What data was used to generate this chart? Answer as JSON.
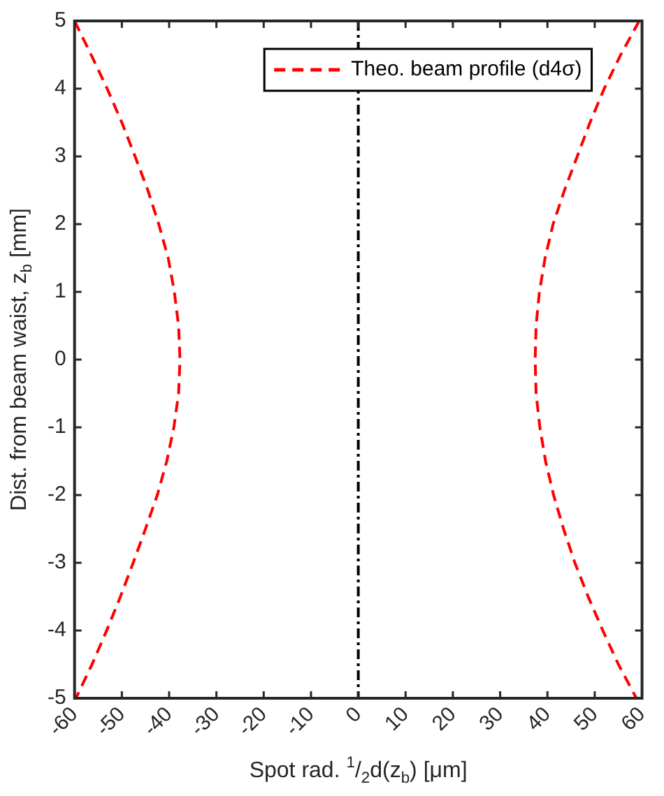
{
  "chart_data": {
    "type": "line",
    "xlabel": "Spot rad. $^{1}$/$_{2}$d(z$_{b}$) [μm]",
    "ylabel": "Dist. from beam waist, z$_{b}$ [mm]",
    "series": [
      {
        "name": "Theo. beam profile (d4σ)",
        "color": "#ff0000",
        "x": [
          -60,
          -56.5,
          -53.1,
          -50,
          -47.2,
          -44.5,
          -42.2,
          -40.2,
          -38.9,
          -38,
          -37.7,
          -38,
          -39,
          -40.5,
          -42.5,
          -45,
          -47.6,
          -50.3,
          -53.2,
          -56.3,
          -59.7
        ],
        "values": [
          5,
          4.5,
          4,
          3.5,
          3,
          2.5,
          2,
          1.5,
          1,
          0.5,
          0,
          -0.5,
          -1,
          -1.5,
          -2,
          -2.5,
          -3,
          -3.5,
          -4,
          -4.5,
          -5
        ]
      },
      {
        "color": "#ff0000",
        "x": [
          59.4,
          55.5,
          52,
          49,
          46.3,
          43.6,
          41.2,
          39.5,
          38.3,
          37.6,
          37.4,
          37.6,
          38.4,
          39.6,
          41.3,
          43.4,
          45.8,
          48.6,
          51.7,
          55,
          58.8
        ],
        "values": [
          5,
          4.5,
          4,
          3.5,
          3,
          2.5,
          2,
          1.5,
          1,
          0.5,
          0,
          -0.5,
          -1,
          -1.5,
          -2,
          -2.5,
          -3,
          -3.5,
          -4,
          -4.5,
          -5
        ]
      }
    ],
    "xlim": [
      -60,
      60
    ],
    "xticks": [
      -60,
      -50,
      -40,
      -30,
      -20,
      -10,
      0,
      10,
      20,
      30,
      40,
      50,
      60
    ],
    "ylim": [
      -5,
      5
    ],
    "yticks": [
      -5,
      -4,
      -3,
      -2,
      -1,
      0,
      1,
      2,
      3,
      4,
      5
    ],
    "ref_lines": [
      {
        "axis": "x",
        "value": 0,
        "color": "#000000",
        "line_style": "dashdot"
      }
    ],
    "grid": false,
    "legend": "top right",
    "line_style": "dashed",
    "marker": "none"
  }
}
